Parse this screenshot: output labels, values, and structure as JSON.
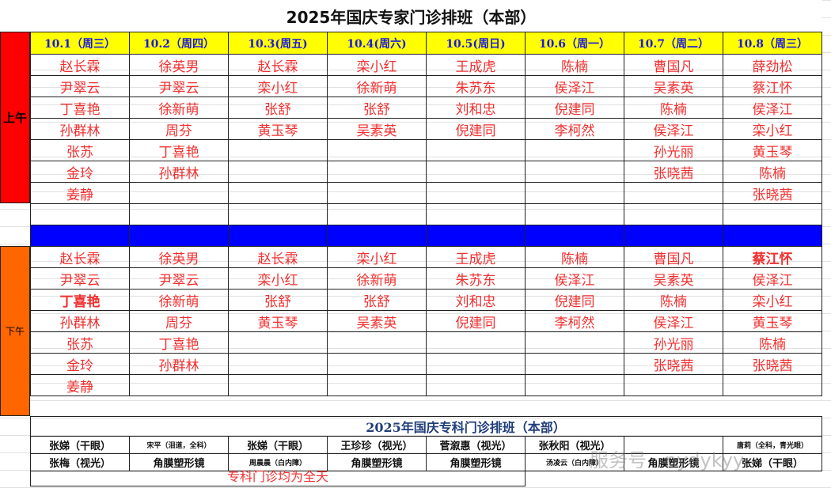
{
  "title": "2025年国庆专家门诊排班（本部）",
  "dates": [
    "10.1（周三）",
    "10.2（周四）",
    "10.3(周五)",
    "10.4(周六)",
    "10.5(周日)",
    "10.6（周一）",
    "10.7（周二）",
    "10.8（周三）"
  ],
  "morning_label": "上午",
  "afternoon_label": "下午",
  "morning": [
    [
      "赵长霖",
      "徐英男",
      "赵长霖",
      "栾小红",
      "王成虎",
      "陈楠",
      "曹国凡",
      "薛劲松"
    ],
    [
      "尹翠云",
      "尹翠云",
      "栾小红",
      "徐新萌",
      "朱苏东",
      "侯泽江",
      "吴素英",
      "蔡江怀"
    ],
    [
      "丁喜艳",
      "徐新萌",
      "张舒",
      "张舒",
      "刘和忠",
      "倪建同",
      "陈楠",
      "侯泽江"
    ],
    [
      "孙群林",
      "周芬",
      "黄玉琴",
      "吴素英",
      "倪建同",
      "李柯然",
      "侯泽江",
      "栾小红"
    ],
    [
      "张苏",
      "丁喜艳",
      "",
      "",
      "",
      "",
      "孙光丽",
      "黄玉琴"
    ],
    [
      "金玲",
      "孙群林",
      "",
      "",
      "",
      "",
      "张晓茜",
      "陈楠"
    ],
    [
      "姜静",
      "",
      "",
      "",
      "",
      "",
      "",
      "张晓茜"
    ]
  ],
  "afternoon": [
    [
      "赵长霖",
      "徐英男",
      "赵长霖",
      "栾小红",
      "王成虎",
      "陈楠",
      "曹国凡",
      "蔡江怀"
    ],
    [
      "尹翠云",
      "尹翠云",
      "栾小红",
      "徐新萌",
      "朱苏东",
      "侯泽江",
      "吴素英",
      "侯泽江"
    ],
    [
      "丁喜艳",
      "徐新萌",
      "张舒",
      "张舒",
      "刘和忠",
      "倪建同",
      "陈楠",
      "栾小红"
    ],
    [
      "孙群林",
      "周芬",
      "黄玉琴",
      "吴素英",
      "倪建同",
      "李柯然",
      "侯泽江",
      "黄玉琴"
    ],
    [
      "张苏",
      "丁喜艳",
      "",
      "",
      "",
      "",
      "孙光丽",
      "陈楠"
    ],
    [
      "金玲",
      "孙群林",
      "",
      "",
      "",
      "",
      "张晓茜",
      "张晓茜"
    ],
    [
      "姜静",
      "",
      "",
      "",
      "",
      "",
      "",
      ""
    ]
  ],
  "specialty": {
    "title": "2025年国庆专科门诊排班（本部）",
    "row1": [
      "张娣（干眼）",
      "宋平（泪道，全科）",
      "张娣（干眼）",
      "王珍珍（视光）",
      "菅溆惠（视光）",
      "张秋阳（视光）",
      "",
      "唐莉（全科，青光眼）"
    ],
    "row2": [
      "张梅（视光）",
      "角膜塑形镜",
      "周晨晨（白内障）",
      "角膜塑形镜",
      "角膜塑形镜",
      "汤凌云（白内障）",
      "角膜塑形镜",
      "张娣（干眼）"
    ],
    "note": "专科门诊均为全天"
  },
  "watermark": "服务号 · nydykyy",
  "colors": {
    "header_bg": "#ffff00",
    "header_text": "#1a1adc",
    "morning_label_bg": "#ff0000",
    "afternoon_label_bg": "#ff6600",
    "divider_bg": "#0000ff",
    "name_text": "#f03030"
  }
}
